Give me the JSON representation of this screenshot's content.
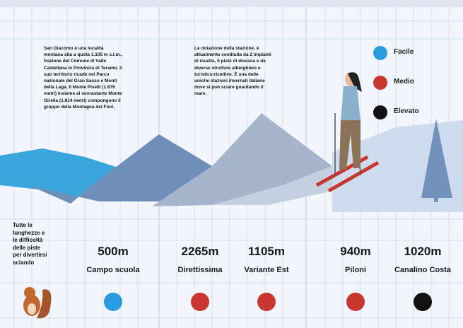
{
  "intro_left": "San Giacomo è una località montana sita a quota 1.105 m s.l.m., frazione del Comune di Valle Castellana in Provincia di Teramo. Il suo territorio ricade nel Parco nazionale del Gran Sasso e Monti della Laga. Il Monte Piselli (1.676 metri) insieme al sovrastante Monte Girella (1.814 metri) compongono il gruppo della Montagna dei Fiori.",
  "intro_middle": "Le dotazione della stazione, è attualmente costituita da 2 impianti di risalita, 5 piste di discesa e da diverse strutture alberghiere e turistico-ricettive. È una delle uniche stazioni invernali italiane dove si può sciare guardando il mare.",
  "legend": [
    {
      "label": "Facile",
      "color": "#2b9be0"
    },
    {
      "label": "Medio",
      "color": "#c9362f"
    },
    {
      "label": "Elevato",
      "color": "#111111"
    }
  ],
  "note": "Tutte le lunghezze e le difficoltà delle piste per divertirsi sciando",
  "pistes": [
    {
      "length": "500m",
      "name": "Campo scuola",
      "color": "#2b9be0"
    },
    {
      "length": "2265m",
      "name": "Direttissima",
      "color": "#c9362f"
    },
    {
      "length": "1105m",
      "name": "Variante Est",
      "color": "#c9362f"
    },
    {
      "length": "940m",
      "name": "Piloni",
      "color": "#c9362f"
    },
    {
      "length": "1020m",
      "name": "Canalino Costa",
      "color": "#111111"
    }
  ]
}
